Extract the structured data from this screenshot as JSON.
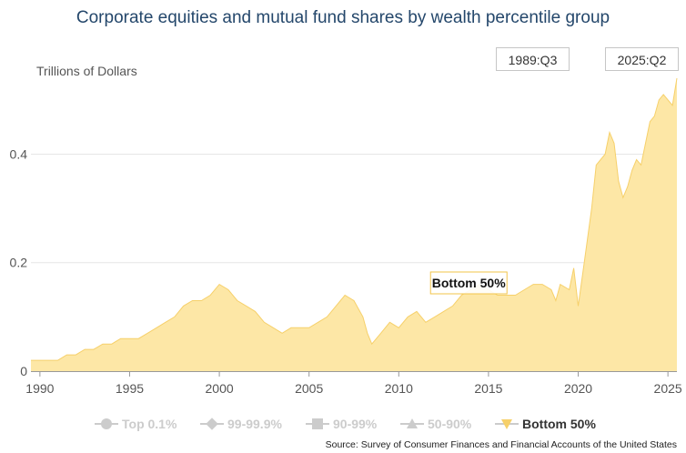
{
  "title": "Corporate equities and mutual fund shares by wealth percentile group",
  "units_label": "Trillions of Dollars",
  "range": {
    "start": "1989:Q3",
    "end": "2025:Q2"
  },
  "legend": [
    {
      "label": "Top 0.1%",
      "marker": "circle",
      "active": false
    },
    {
      "label": "99-99.9%",
      "marker": "diamond",
      "active": false
    },
    {
      "label": "90-99%",
      "marker": "square",
      "active": false
    },
    {
      "label": "50-90%",
      "marker": "triangle-up",
      "active": false
    },
    {
      "label": "Bottom 50%",
      "marker": "triangle-down",
      "active": true
    }
  ],
  "source": "Source: Survey of Consumer Finances and Financial Accounts of the United States",
  "colors": {
    "area": "#fde7a6",
    "area_line": "#f6d06a",
    "grid": "#e6e6e6",
    "tooltip_border": "#f2c44a"
  },
  "chart_data": {
    "type": "area",
    "series": [
      {
        "name": "Bottom 50%",
        "x": [
          1989.5,
          1990,
          1990.5,
          1991,
          1991.5,
          1992,
          1992.5,
          1993,
          1993.5,
          1994,
          1994.5,
          1995,
          1995.5,
          1996,
          1996.5,
          1997,
          1997.5,
          1998,
          1998.5,
          1999,
          1999.5,
          2000,
          2000.5,
          2001,
          2001.5,
          2002,
          2002.5,
          2003,
          2003.5,
          2004,
          2004.5,
          2005,
          2005.5,
          2006,
          2006.5,
          2007,
          2007.5,
          2008,
          2008.25,
          2008.5,
          2008.75,
          2009,
          2009.5,
          2010,
          2010.5,
          2011,
          2011.5,
          2012,
          2012.5,
          2013,
          2013.5,
          2014,
          2014.5,
          2015,
          2015.5,
          2016,
          2016.5,
          2017,
          2017.5,
          2018,
          2018.5,
          2018.75,
          2019,
          2019.5,
          2019.75,
          2020,
          2020.25,
          2020.5,
          2020.75,
          2021,
          2021.5,
          2021.75,
          2022,
          2022.25,
          2022.5,
          2022.75,
          2023,
          2023.25,
          2023.5,
          2023.75,
          2024,
          2024.25,
          2024.5,
          2024.75,
          2025,
          2025.25,
          2025.5
        ],
        "y": [
          0.02,
          0.02,
          0.02,
          0.02,
          0.03,
          0.03,
          0.04,
          0.04,
          0.05,
          0.05,
          0.06,
          0.06,
          0.06,
          0.07,
          0.08,
          0.09,
          0.1,
          0.12,
          0.13,
          0.13,
          0.14,
          0.16,
          0.15,
          0.13,
          0.12,
          0.11,
          0.09,
          0.08,
          0.07,
          0.08,
          0.08,
          0.08,
          0.09,
          0.1,
          0.12,
          0.14,
          0.13,
          0.1,
          0.07,
          0.05,
          0.06,
          0.07,
          0.09,
          0.08,
          0.1,
          0.11,
          0.09,
          0.1,
          0.11,
          0.12,
          0.14,
          0.15,
          0.16,
          0.15,
          0.14,
          0.14,
          0.14,
          0.15,
          0.16,
          0.16,
          0.15,
          0.13,
          0.16,
          0.15,
          0.19,
          0.12,
          0.18,
          0.24,
          0.3,
          0.38,
          0.4,
          0.44,
          0.42,
          0.35,
          0.32,
          0.34,
          0.37,
          0.39,
          0.38,
          0.42,
          0.46,
          0.47,
          0.5,
          0.51,
          0.5,
          0.49,
          0.54
        ]
      }
    ],
    "ylim": [
      0,
      0.55
    ],
    "yticks": [
      0,
      0.2,
      0.4
    ],
    "xlim": [
      1989.5,
      2025.5
    ],
    "xticks": [
      1990,
      1995,
      2000,
      2005,
      2010,
      2015,
      2020,
      2025
    ],
    "grid": true,
    "tooltip": {
      "label": "Bottom 50%",
      "x": 2013.9
    }
  }
}
